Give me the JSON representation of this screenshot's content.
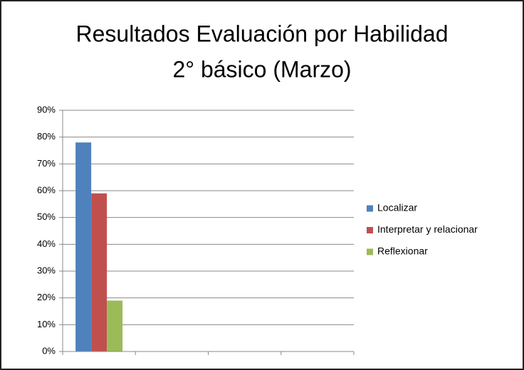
{
  "chart_data": {
    "type": "bar",
    "title": [
      "Resultados Evaluación por Habilidad",
      "2° básico (Marzo)"
    ],
    "categories": [
      null,
      null,
      null,
      null
    ],
    "series": [
      {
        "name": "Localizar",
        "color": "#4f81bd",
        "values": [
          78,
          null,
          null,
          null
        ]
      },
      {
        "name": "Interpretar y relacionar",
        "color": "#c0504d",
        "values": [
          59,
          null,
          null,
          null
        ]
      },
      {
        "name": "Reflexionar",
        "color": "#9bbb59",
        "values": [
          19,
          null,
          null,
          null
        ]
      }
    ],
    "ylim": [
      0,
      90
    ],
    "yticks": [
      {
        "value": 0,
        "label": "0%"
      },
      {
        "value": 10,
        "label": "10%"
      },
      {
        "value": 20,
        "label": "20%"
      },
      {
        "value": 30,
        "label": "30%"
      },
      {
        "value": 40,
        "label": "40%"
      },
      {
        "value": 50,
        "label": "50%"
      },
      {
        "value": 60,
        "label": "60%"
      },
      {
        "value": 70,
        "label": "70%"
      },
      {
        "value": 80,
        "label": "80%"
      },
      {
        "value": 90,
        "label": "90%"
      }
    ],
    "grid": true,
    "legend": "right"
  }
}
